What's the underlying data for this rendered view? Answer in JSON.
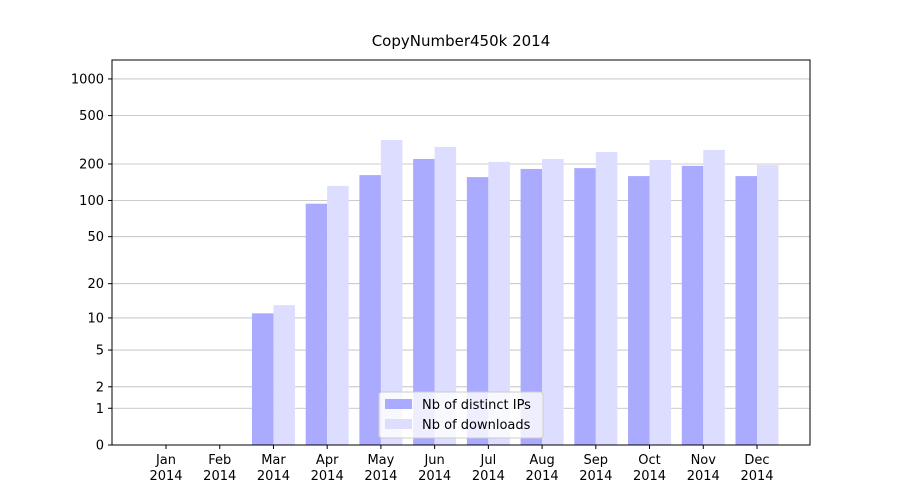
{
  "chart_data": {
    "type": "bar",
    "title": "CopyNumber450k 2014",
    "categories": [
      "Jan 2014",
      "Feb 2014",
      "Mar 2014",
      "Apr 2014",
      "May 2014",
      "Jun 2014",
      "Jul 2014",
      "Aug 2014",
      "Sep 2014",
      "Oct 2014",
      "Nov 2014",
      "Dec 2014"
    ],
    "series": [
      {
        "name": "Nb of distinct IPs",
        "color": "#aaaaff",
        "values": [
          0,
          0,
          11,
          94,
          162,
          220,
          156,
          182,
          185,
          159,
          193,
          159
        ]
      },
      {
        "name": "Nb of downloads",
        "color": "#ddddff",
        "values": [
          0,
          0,
          13,
          132,
          315,
          276,
          208,
          220,
          251,
          216,
          261,
          196
        ]
      }
    ],
    "yscale": "log1p",
    "ylim": [
      0,
      1430
    ],
    "yticks": [
      0,
      1,
      2,
      5,
      10,
      20,
      50,
      100,
      200,
      500,
      1000
    ],
    "grid": true,
    "legend": "lower center"
  }
}
